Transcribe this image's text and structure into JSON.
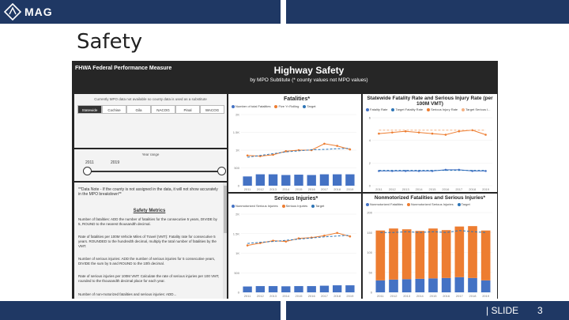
{
  "header": {
    "logo_text": "MAG"
  },
  "slide": {
    "title": "Safety",
    "label": "| SLIDE",
    "number": "3"
  },
  "dashboard": {
    "measure": "FHWA Federal Performance Measure",
    "title": "Highway Safety",
    "subtitle": "by MPO Subtitute (* county values not MPO values)",
    "filter_note": "Currently MPO data not available so county data is used as a substitute",
    "filters": [
      "Statewide",
      "Cochise",
      "Gila",
      "NACOG",
      "Pinal",
      "WACOG"
    ],
    "selected_filter": "Statewide",
    "year_range_label": "Year range",
    "year_start": "2011",
    "year_end": "2019",
    "note": "**Data Note - If the county is not assigned in the data, it will not show accurately in the MPO breakdown**",
    "metrics_title": "Safety Metrics",
    "metrics": [
      "Number of fatalities: ADD the number of fatalities for the consecutive 5 years, DIVIDE by 5, ROUND to the nearest thousandth decimal.",
      "Rate of fatalities per 100M Vehicle Miles of Travel (VMT): Fatality rate for consecutive 5 years. ROUNDED to the hundredth decimal, multiply the total number of fatalities by the VMT.",
      "Number of serious injuries: ADD the number of serious injuries for 5 consecutive years, DIVIDE the sum by 5 and ROUND to the 10th decimal.",
      "Rate of serious injuries per 100M VMT: Calculate the rate of serious injuries per 100 VMT, rounded to the thousandth decimal place for each year.",
      "Number of non-motorized fatalities and serious injuries: ADD..."
    ]
  },
  "colors": {
    "orange": "#ed7d31",
    "blue": "#4472c4",
    "dark": "#262626",
    "navy": "#1f3864"
  },
  "chart_data": [
    {
      "type": "bar",
      "title": "Fatalities*",
      "legend": [
        "Number of total Fatalities",
        "Five Yr Rolling",
        "Target"
      ],
      "categories": [
        "2011",
        "2012",
        "2013",
        "2014",
        "2015",
        "2016",
        "2017",
        "2018",
        "2019"
      ],
      "ylim": [
        0,
        2000
      ],
      "yticks": [
        "0",
        "500",
        "1K",
        "1.5K",
        "2K"
      ],
      "series": [
        {
          "name": "Number of total Fatalities",
          "kind": "bar",
          "values": [
            260,
            320,
            320,
            300,
            310,
            300,
            320,
            320,
            320
          ]
        },
        {
          "name": "Five Yr Rolling",
          "kind": "line",
          "values": [
            850,
            830,
            870,
            970,
            1000,
            1000,
            1180,
            1120,
            1020
          ]
        },
        {
          "name": "Target",
          "kind": "dash",
          "values": [
            800,
            850,
            900,
            950,
            980,
            1010,
            1020,
            1040,
            1050
          ]
        }
      ]
    },
    {
      "type": "line",
      "title": "Statewide Fatality Rate and Serious Injury Rate (per 100M VMT)",
      "legend": [
        "Fatality Rate",
        "Target Fatality Rate",
        "Serious Injury Rate",
        "Target Serious I..."
      ],
      "categories": [
        "2011",
        "2012",
        "2013",
        "2014",
        "2015",
        "2016",
        "2017",
        "2018",
        "2019"
      ],
      "ylim": [
        0,
        6
      ],
      "yticks": [
        "0",
        "2",
        "4",
        "6"
      ],
      "series": [
        {
          "name": "Fatality Rate",
          "kind": "line-blue",
          "values": [
            1.3,
            1.3,
            1.3,
            1.3,
            1.3,
            1.4,
            1.4,
            1.3,
            1.3
          ]
        },
        {
          "name": "Target Fatality Rate",
          "kind": "dash-blue",
          "values": [
            1.35,
            1.35,
            1.35,
            1.35,
            1.35,
            1.35,
            1.35,
            1.35,
            1.35
          ]
        },
        {
          "name": "Serious Injury Rate",
          "kind": "line-orange",
          "values": [
            4.6,
            4.7,
            4.8,
            4.7,
            4.6,
            4.5,
            4.8,
            4.9,
            4.5
          ]
        },
        {
          "name": "Target Serious I...",
          "kind": "dash-orange",
          "values": [
            4.9,
            4.9,
            4.9,
            4.9,
            4.9,
            4.9,
            4.9,
            4.9,
            4.9
          ]
        }
      ]
    },
    {
      "type": "bar",
      "title": "Serious Injuries*",
      "legend": [
        "Nonmotorized Serious Injuries",
        "Serious Injuries",
        "Target"
      ],
      "categories": [
        "2011",
        "2012",
        "2013",
        "2014",
        "2015",
        "2016",
        "2017",
        "2018",
        "2019"
      ],
      "ylim": [
        0,
        2000
      ],
      "yticks": [
        "0",
        "500",
        "1K",
        "1.5K",
        "2K"
      ],
      "series": [
        {
          "name": "Nonmotorized Serious Injuries",
          "kind": "bar",
          "values": [
            150,
            160,
            160,
            155,
            160,
            160,
            170,
            180,
            180
          ]
        },
        {
          "name": "Serious Injuries",
          "kind": "line",
          "values": [
            1200,
            1260,
            1320,
            1300,
            1380,
            1400,
            1450,
            1520,
            1430
          ]
        },
        {
          "name": "Target",
          "kind": "dash",
          "values": [
            1250,
            1280,
            1300,
            1330,
            1360,
            1390,
            1420,
            1440,
            1460
          ]
        }
      ]
    },
    {
      "type": "stacked-bar",
      "title": "Nonmotorized Fatalities and Serious Injuries*",
      "legend": [
        "Nonmotorized Fatalities",
        "Nonmotorized Serious Injuries",
        "Target"
      ],
      "categories": [
        "2011",
        "2012",
        "2013",
        "2014",
        "2015",
        "2016",
        "2017",
        "2018",
        "2019"
      ],
      "ylim": [
        0,
        200
      ],
      "yticks": [
        "0",
        "50",
        "100",
        "150",
        "200"
      ],
      "series": [
        {
          "name": "Nonmotorized Fatalities",
          "kind": "stack-blue",
          "values": [
            30,
            32,
            33,
            34,
            35,
            36,
            38,
            36,
            30
          ]
        },
        {
          "name": "Nonmotorized Serious Injuries",
          "kind": "stack-orange",
          "values": [
            125,
            128,
            125,
            120,
            125,
            120,
            127,
            130,
            125
          ]
        },
        {
          "name": "Target",
          "kind": "dash",
          "values": [
            150,
            150,
            152,
            150,
            152,
            150,
            155,
            152,
            150
          ]
        }
      ]
    }
  ]
}
